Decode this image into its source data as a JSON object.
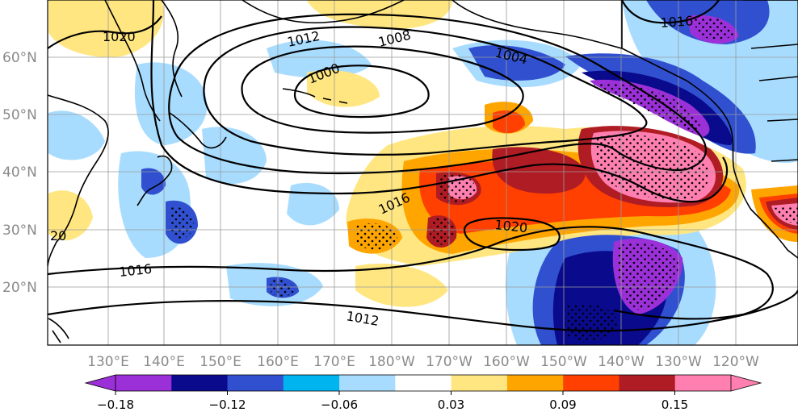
{
  "map": {
    "lat_labels": [
      "60°N",
      "50°N",
      "40°N",
      "30°N",
      "20°N"
    ],
    "lon_labels": [
      "130°E",
      "140°E",
      "150°E",
      "160°E",
      "170°E",
      "180°W",
      "170°W",
      "160°W",
      "150°W",
      "140°W",
      "130°W",
      "120°W"
    ],
    "contour_labels": [
      "1020",
      "1012",
      "1008",
      "1004",
      "1000",
      "1016",
      "1016",
      "1020",
      "1016",
      "1012",
      "20"
    ]
  },
  "colorbar": {
    "colors": [
      "#9b30d8",
      "#0a0a8c",
      "#3050d0",
      "#00b4f0",
      "#a8dcff",
      "#ffffff",
      "#ffe680",
      "#ffa500",
      "#ff4000",
      "#b01c24",
      "#ff80b0"
    ],
    "tick_labels": [
      "−0.18",
      "−0.12",
      "−0.06",
      "0.03",
      "0.09",
      "0.15"
    ]
  },
  "chart_data": {
    "type": "heatmap",
    "region": "North Pacific",
    "lat_ticks": [
      "60°N",
      "50°N",
      "40°N",
      "30°N",
      "20°N"
    ],
    "lon_ticks": [
      "130°E",
      "140°E",
      "150°E",
      "160°E",
      "170°E",
      "180°W",
      "170°W",
      "160°W",
      "150°W",
      "140°W",
      "130°W",
      "120°W"
    ],
    "colorbar_ticks": [
      -0.18,
      -0.12,
      -0.06,
      0.03,
      0.09,
      0.15
    ],
    "colorbar_levels": [
      -0.18,
      -0.15,
      -0.12,
      -0.09,
      -0.06,
      -0.03,
      0.03,
      0.06,
      0.09,
      0.12,
      0.15
    ],
    "colorbar_extend": "both",
    "contour_levels_hPa": [
      1000,
      1004,
      1008,
      1012,
      1016,
      1020
    ],
    "grid": true
  }
}
